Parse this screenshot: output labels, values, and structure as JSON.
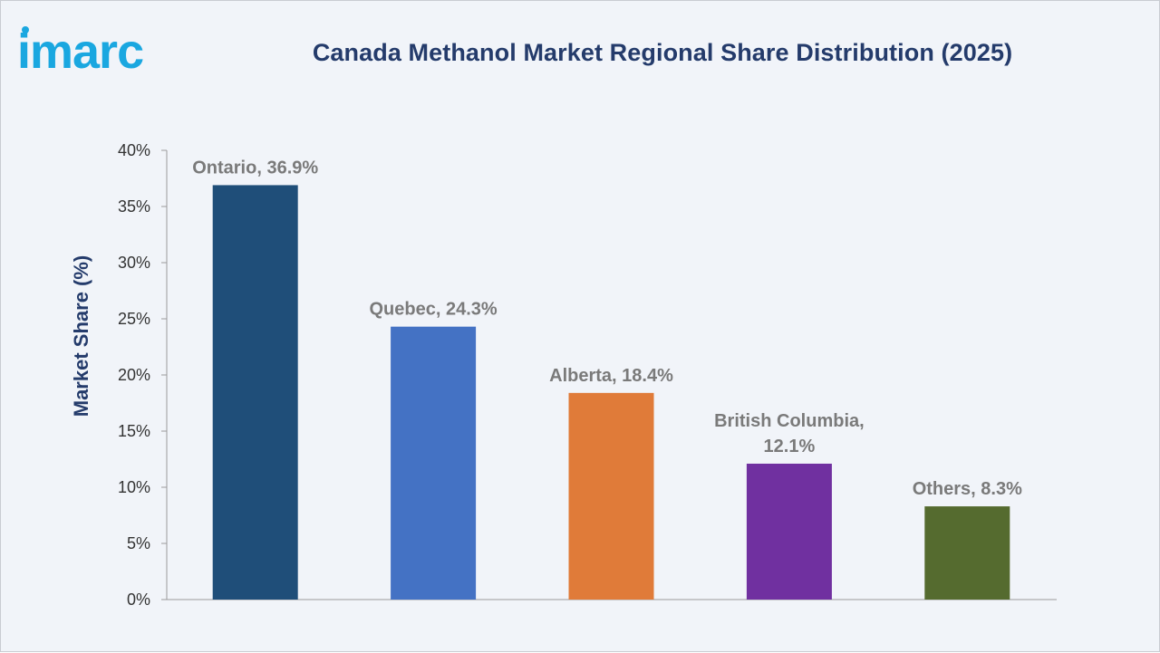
{
  "brand": {
    "logo_text": "imarc",
    "color": "#1aa7e0"
  },
  "chart_data": {
    "type": "bar",
    "title": "Canada Methanol Market Regional Share Distribution (2025)",
    "xlabel": "",
    "ylabel": "Market Share (%)",
    "ylim": [
      0,
      40
    ],
    "y_ticks": [
      "0%",
      "5%",
      "10%",
      "15%",
      "20%",
      "25%",
      "30%",
      "35%",
      "40%"
    ],
    "y_tick_values": [
      0,
      5,
      10,
      15,
      20,
      25,
      30,
      35,
      40
    ],
    "categories": [
      "Ontario",
      "Quebec",
      "Alberta",
      "British Columbia",
      "Others"
    ],
    "values": [
      36.9,
      24.3,
      18.4,
      12.1,
      8.3
    ],
    "data_labels": [
      [
        "Ontario, 36.9%"
      ],
      [
        "Quebec, 24.3%"
      ],
      [
        "Alberta, 18.4%"
      ],
      [
        "British Columbia,",
        "12.1%"
      ],
      [
        "Others, 8.3%"
      ]
    ],
    "colors": [
      "#1f4e79",
      "#4472c4",
      "#e07b39",
      "#7030a0",
      "#556b2f"
    ],
    "grid": false,
    "legend": "none"
  }
}
